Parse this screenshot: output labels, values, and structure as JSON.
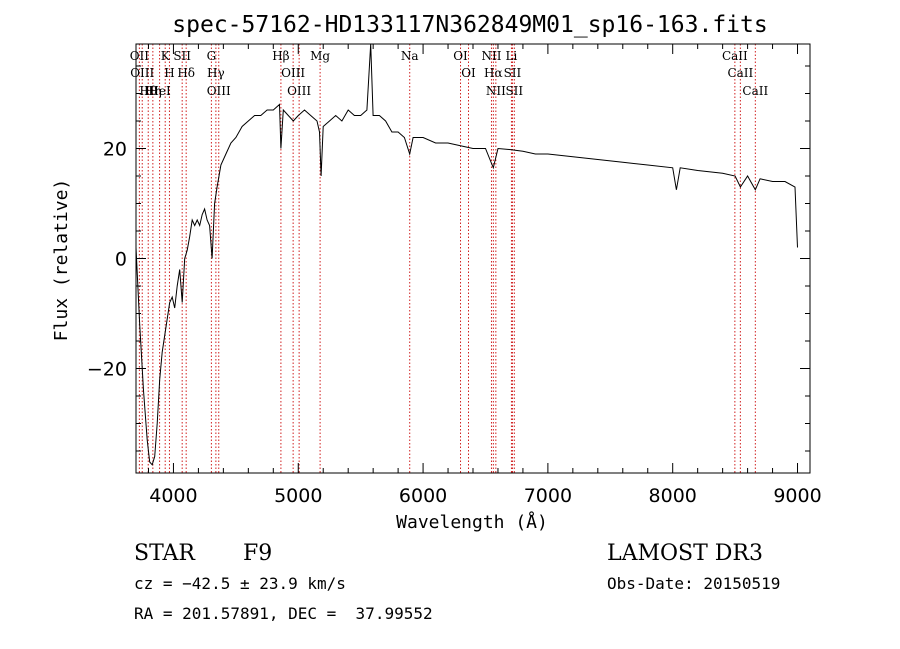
{
  "chart_data": {
    "type": "line",
    "title": "spec-57162-HD133117N362849M01_sp16-163.fits",
    "xlabel": "Wavelength (Å)",
    "ylabel": "Flux (relative)",
    "xlim": [
      3700,
      9100
    ],
    "ylim": [
      -39,
      39
    ],
    "xticks": [
      4000,
      5000,
      6000,
      7000,
      8000,
      9000
    ],
    "xtick_labels": [
      "4000",
      "5000",
      "6000",
      "7000",
      "8000",
      "9000"
    ],
    "yticks": [
      -20,
      0,
      20
    ],
    "ytick_labels": [
      "−20",
      "0",
      "20"
    ],
    "grid": false,
    "series": [
      {
        "x": [
          3700,
          3730,
          3760,
          3790,
          3810,
          3830,
          3850,
          3870,
          3890,
          3910,
          3930,
          3950,
          3970,
          3990,
          4010,
          4030,
          4050,
          4070,
          4090,
          4110,
          4130,
          4150,
          4170,
          4190,
          4210,
          4230,
          4250,
          4270,
          4290,
          4310,
          4330,
          4350,
          4380,
          4420,
          4460,
          4500,
          4550,
          4600,
          4650,
          4700,
          4750,
          4800,
          4850,
          4861,
          4880,
          4920,
          4960,
          5000,
          5050,
          5100,
          5150,
          5170,
          5183,
          5200,
          5250,
          5300,
          5350,
          5400,
          5450,
          5500,
          5550,
          5580,
          5600,
          5650,
          5700,
          5750,
          5800,
          5850,
          5893,
          5920,
          6000,
          6100,
          6200,
          6300,
          6400,
          6500,
          6563,
          6600,
          6700,
          6800,
          6900,
          7000,
          7200,
          7400,
          7600,
          7800,
          8000,
          8030,
          8060,
          8200,
          8400,
          8500,
          8542,
          8600,
          8662,
          8700,
          8800,
          8900,
          8980,
          9000
        ],
        "values": [
          2,
          -12,
          -24,
          -33,
          -37,
          -37.5,
          -36,
          -30,
          -22,
          -17,
          -14,
          -11,
          -8,
          -7,
          -9,
          -5,
          -2,
          -8,
          0,
          1.5,
          4,
          7,
          6,
          7,
          6,
          8,
          9,
          7,
          6,
          0,
          10,
          13,
          17,
          19,
          21,
          22,
          24,
          25,
          26,
          26,
          27,
          27,
          28,
          20,
          27,
          26,
          25,
          26,
          27,
          26,
          25,
          23,
          15,
          24,
          25,
          26,
          25,
          27,
          26,
          26,
          27,
          40,
          26,
          26,
          25,
          23,
          23,
          22,
          19,
          22,
          22,
          21,
          21,
          20.5,
          20,
          20,
          16.5,
          20,
          19.8,
          19.5,
          19,
          19,
          18.5,
          18,
          17.5,
          17,
          16.5,
          12.5,
          16.5,
          16,
          15.5,
          15,
          13,
          15,
          12.5,
          14.5,
          14,
          14,
          13,
          2
        ]
      }
    ],
    "line_markers": [
      {
        "x": 3727,
        "labels": [
          "OII"
        ]
      },
      {
        "x": 3750,
        "labels": [
          "OIII"
        ]
      },
      {
        "x": 3798,
        "labels": [
          "Hθ"
        ]
      },
      {
        "x": 3835,
        "labels": [
          "Hη"
        ]
      },
      {
        "x": 3889,
        "labels": [
          "HeI"
        ]
      },
      {
        "x": 3934,
        "labels": [
          "K"
        ]
      },
      {
        "x": 3968,
        "labels": [
          "H"
        ]
      },
      {
        "x": 4070,
        "labels": [
          "SII"
        ]
      },
      {
        "x": 4102,
        "labels": [
          "Hδ"
        ]
      },
      {
        "x": 4304,
        "labels": [
          "G"
        ]
      },
      {
        "x": 4340,
        "labels": [
          "Hγ"
        ]
      },
      {
        "x": 4363,
        "labels": [
          "OIII"
        ]
      },
      {
        "x": 4861,
        "labels": [
          "Hβ"
        ]
      },
      {
        "x": 4959,
        "labels": [
          "OIII"
        ]
      },
      {
        "x": 5007,
        "labels": [
          "OIII"
        ]
      },
      {
        "x": 5175,
        "labels": [
          "Mg"
        ]
      },
      {
        "x": 5893,
        "labels": [
          "Na"
        ]
      },
      {
        "x": 6300,
        "labels": [
          "OI"
        ]
      },
      {
        "x": 6364,
        "labels": [
          "OI"
        ]
      },
      {
        "x": 6548,
        "labels": [
          "NII"
        ]
      },
      {
        "x": 6563,
        "labels": [
          "Hα"
        ]
      },
      {
        "x": 6583,
        "labels": [
          "NII"
        ]
      },
      {
        "x": 6708,
        "labels": [
          "Li"
        ]
      },
      {
        "x": 6716,
        "labels": [
          "SII"
        ]
      },
      {
        "x": 6731,
        "labels": [
          "SII"
        ]
      },
      {
        "x": 8498,
        "labels": [
          "CaII"
        ]
      },
      {
        "x": 8542,
        "labels": [
          "CaII"
        ]
      },
      {
        "x": 8662,
        "labels": [
          "CaII"
        ]
      }
    ]
  },
  "info": {
    "object_class": "STAR",
    "subclass": "F9",
    "survey": "LAMOST DR3",
    "redshift": "cz = −42.5 ± 23.9 km/s",
    "obs_date": "Obs-Date: 20150519",
    "coords": "RA = 201.57891, DEC =  37.99552"
  }
}
